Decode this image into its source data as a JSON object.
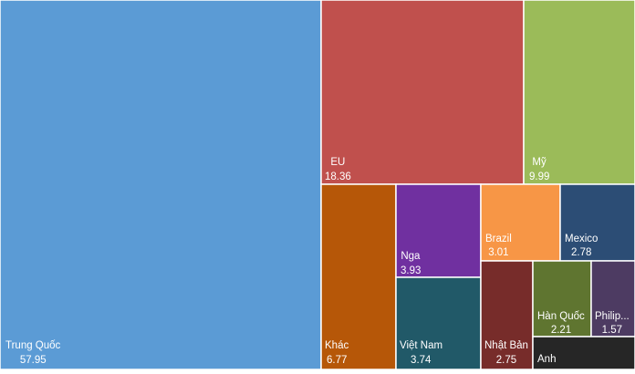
{
  "chart_data": {
    "type": "treemap",
    "items": [
      {
        "label": "Trung Quốc",
        "value": "57.95",
        "color": "#5b9bd5"
      },
      {
        "label": "EU",
        "value": "18.36",
        "color": "#c0504d"
      },
      {
        "label": "Mỹ",
        "value": "9.99",
        "color": "#9bbb59"
      },
      {
        "label": "Khác",
        "value": "6.77",
        "color": "#b65708"
      },
      {
        "label": "Nga",
        "value": "3.93",
        "color": "#7030a0"
      },
      {
        "label": "Việt Nam",
        "value": "3.74",
        "color": "#215968"
      },
      {
        "label": "Brazil",
        "value": "3.01",
        "color": "#f79646"
      },
      {
        "label": "Mexico",
        "value": "2.78",
        "color": "#2c4d75"
      },
      {
        "label": "Nhật Bản",
        "value": "2.75",
        "color": "#772c2a"
      },
      {
        "label": "Hàn Quốc",
        "value": "2.21",
        "color": "#5f7530"
      },
      {
        "label": "Philip...",
        "value": "1.57",
        "color": "#4d3b62"
      },
      {
        "label": "Anh",
        "value": "",
        "color": "#262626"
      }
    ]
  }
}
